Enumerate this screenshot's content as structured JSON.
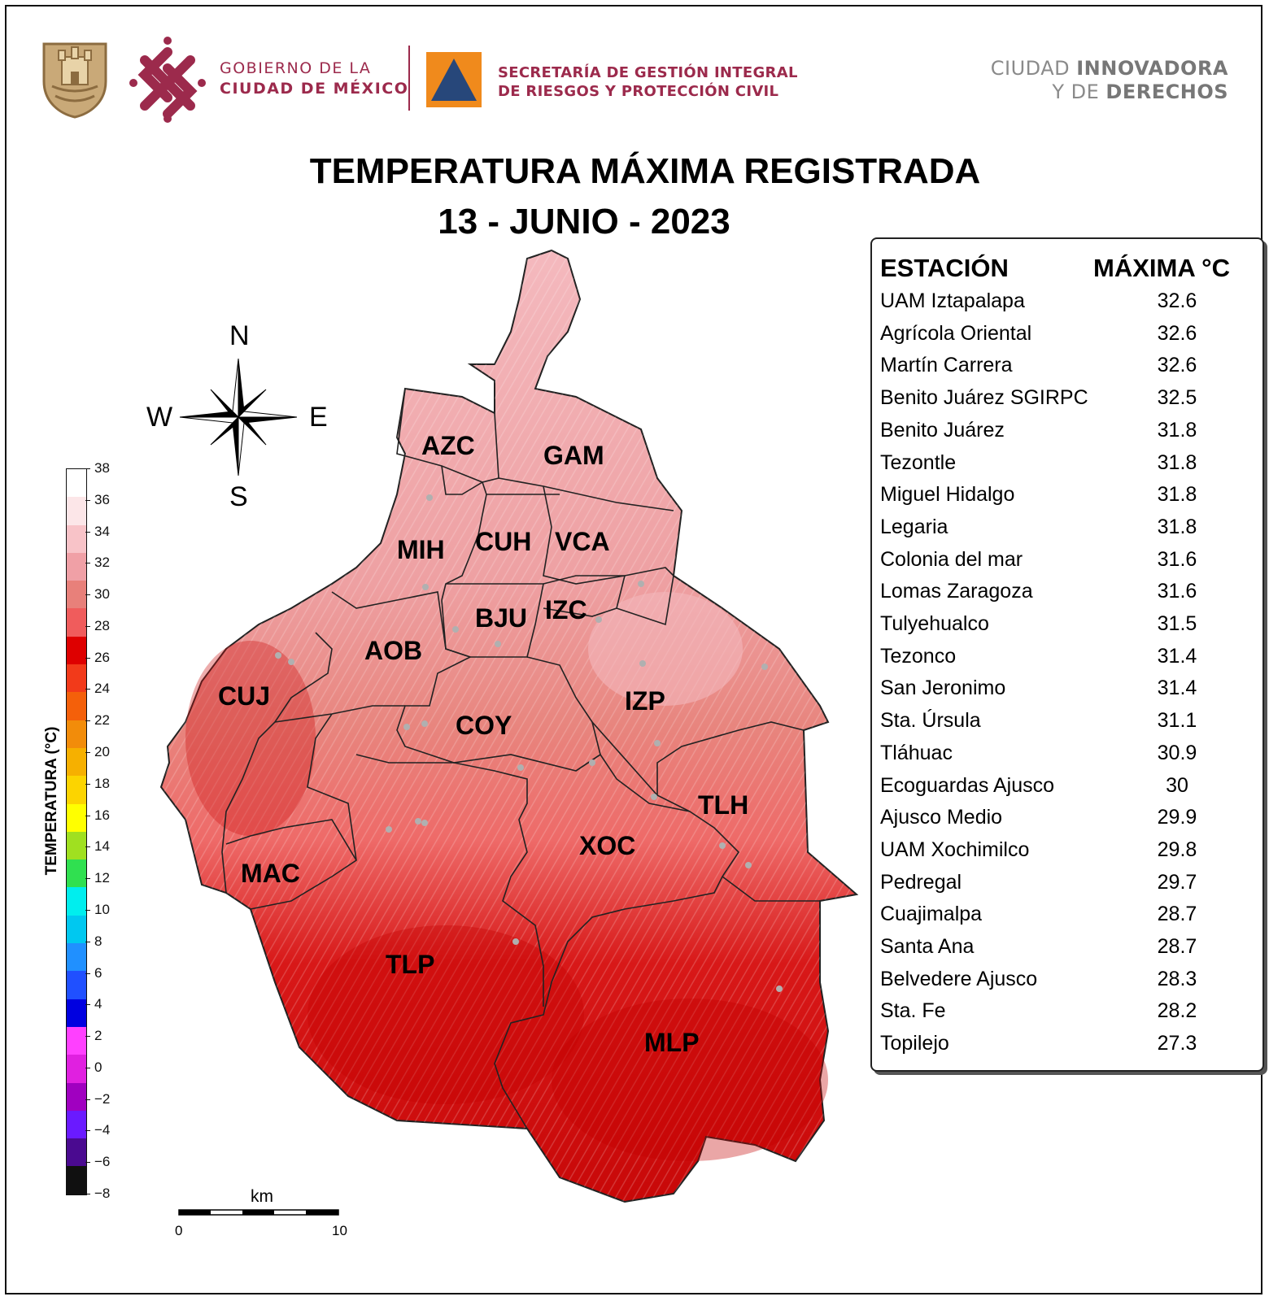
{
  "header": {
    "gov_line1": "GOBIERNO DE LA",
    "gov_line2": "CIUDAD DE MÉXICO",
    "sec_line1": "SECRETARÍA DE GESTIÓN INTEGRAL",
    "sec_line2": "DE RIESGOS Y PROTECCIÓN CIVIL",
    "motto_line1_a": "CIUDAD ",
    "motto_line1_b": "INNOVADORA",
    "motto_line2_a": "Y DE ",
    "motto_line2_b": "DERECHOS",
    "coat_of_arms_icon": "cdmx-coat-of-arms-icon",
    "logo_icon": "cdmx-knot-logo-icon",
    "pc_icon": "proteccion-civil-triangle-icon",
    "colors": {
      "brand": "#9c2a4c",
      "gold": "#b0926a",
      "orange": "#f08a1c",
      "navy": "#27477a"
    }
  },
  "title": {
    "line1": "TEMPERATURA MÁXIMA REGISTRADA",
    "line2": "13 - JUNIO - 2023"
  },
  "compass": {
    "n": "N",
    "s": "S",
    "e": "E",
    "w": "W",
    "icon": "compass-rose-icon"
  },
  "colorbar": {
    "label": "TEMPERATURA (°C)",
    "ticks": [
      "38",
      "36",
      "34",
      "32",
      "30",
      "28",
      "26",
      "24",
      "22",
      "20",
      "18",
      "16",
      "14",
      "12",
      "10",
      "8",
      "6",
      "4",
      "2",
      "0",
      "−2",
      "−4",
      "−6",
      "−8"
    ],
    "colors": [
      "#ffffff",
      "#fce6e8",
      "#f8c3c8",
      "#f0a0a6",
      "#e8807a",
      "#f05c5c",
      "#de0000",
      "#f23a1a",
      "#f4600a",
      "#f28c0a",
      "#f6b000",
      "#fcd400",
      "#ffff00",
      "#a0e020",
      "#30e050",
      "#00eeee",
      "#00c8f0",
      "#2090ff",
      "#2050ff",
      "#0000e0",
      "#ff40ff",
      "#e020e0",
      "#a000c0",
      "#6a1aff",
      "#4a0a90",
      "#101010"
    ]
  },
  "scalebar": {
    "unit": "km",
    "start": "0",
    "end": "10"
  },
  "map": {
    "labels": [
      {
        "code": "AZC"
      },
      {
        "code": "GAM"
      },
      {
        "code": "MIH"
      },
      {
        "code": "CUH"
      },
      {
        "code": "VCA"
      },
      {
        "code": "BJU"
      },
      {
        "code": "IZC"
      },
      {
        "code": "AOB"
      },
      {
        "code": "CUJ"
      },
      {
        "code": "COY"
      },
      {
        "code": "IZP"
      },
      {
        "code": "TLH"
      },
      {
        "code": "XOC"
      },
      {
        "code": "MAC"
      },
      {
        "code": "TLP"
      },
      {
        "code": "MLP"
      }
    ]
  },
  "table": {
    "header_station": "ESTACIÓN",
    "header_max": "MÁXIMA °C",
    "rows": [
      {
        "station": "UAM Iztapalapa",
        "max": "32.6"
      },
      {
        "station": "Agrícola Oriental",
        "max": "32.6"
      },
      {
        "station": "Martín Carrera",
        "max": "32.6"
      },
      {
        "station": "Benito Juárez SGIRPC",
        "max": "32.5"
      },
      {
        "station": "Benito Juárez",
        "max": "31.8"
      },
      {
        "station": "Tezontle",
        "max": "31.8"
      },
      {
        "station": "Miguel Hidalgo",
        "max": "31.8"
      },
      {
        "station": "Legaria",
        "max": "31.8"
      },
      {
        "station": "Colonia del mar",
        "max": "31.6"
      },
      {
        "station": "Lomas Zaragoza",
        "max": "31.6"
      },
      {
        "station": "Tulyehualco",
        "max": "31.5"
      },
      {
        "station": "Tezonco",
        "max": "31.4"
      },
      {
        "station": "San Jeronimo",
        "max": "31.4"
      },
      {
        "station": "Sta. Úrsula",
        "max": "31.1"
      },
      {
        "station": "Tláhuac",
        "max": "30.9"
      },
      {
        "station": "Ecoguardas Ajusco",
        "max": "30"
      },
      {
        "station": "Ajusco Medio",
        "max": "29.9"
      },
      {
        "station": "UAM Xochimilco",
        "max": "29.8"
      },
      {
        "station": "Pedregal",
        "max": "29.7"
      },
      {
        "station": "Cuajimalpa",
        "max": "28.7"
      },
      {
        "station": "Santa Ana",
        "max": "28.7"
      },
      {
        "station": "Belvedere Ajusco",
        "max": "28.3"
      },
      {
        "station": "Sta. Fe",
        "max": "28.2"
      },
      {
        "station": "Topilejo",
        "max": "27.3"
      }
    ]
  }
}
